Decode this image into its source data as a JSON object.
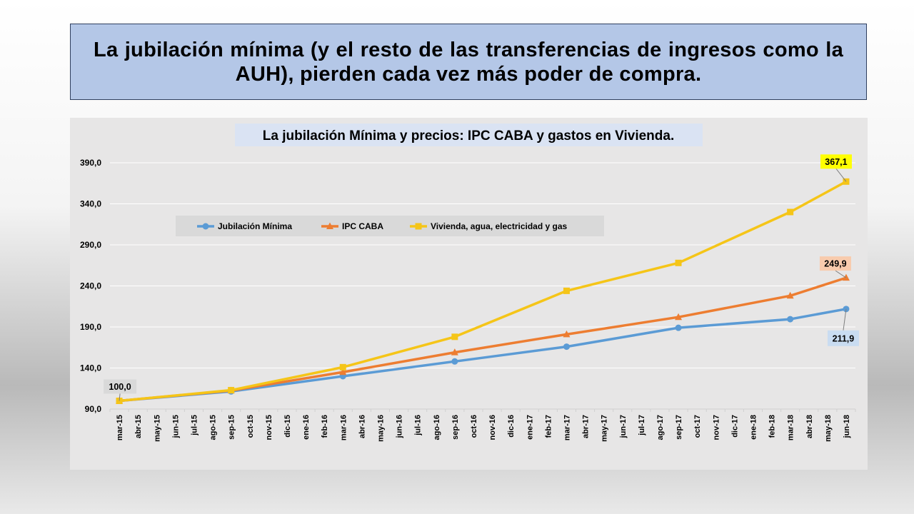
{
  "slide": {
    "headline": "La jubilación mínima (y el resto de las transferencias de ingresos como la AUH), pierden cada vez más poder de compra."
  },
  "chart_data": {
    "type": "line",
    "title": "La jubilación Mínima y precios: IPC CABA y gastos en Vivienda.",
    "xlabel": "",
    "ylabel": "",
    "ylim": [
      90,
      390
    ],
    "yticks": [
      "390,0",
      "340,0",
      "290,0",
      "240,0",
      "190,0",
      "140,0",
      "90,0"
    ],
    "ytick_values": [
      390,
      340,
      290,
      240,
      190,
      140,
      90
    ],
    "categories": [
      "mar-15",
      "abr-15",
      "may-15",
      "jun-15",
      "jul-15",
      "ago-15",
      "sep-15",
      "oct-15",
      "nov-15",
      "dic-15",
      "ene-16",
      "feb-16",
      "mar-16",
      "abr-16",
      "may-16",
      "jun-16",
      "jul-16",
      "ago-16",
      "sep-16",
      "oct-16",
      "nov-16",
      "dic-16",
      "ene-17",
      "feb-17",
      "mar-17",
      "abr-17",
      "may-17",
      "jun-17",
      "jul-17",
      "ago-17",
      "sep-17",
      "oct-17",
      "nov-17",
      "dic-17",
      "ene-18",
      "feb-18",
      "mar-18",
      "abr-18",
      "may-18",
      "jun-18"
    ],
    "legend_position": "top-left",
    "series": [
      {
        "name": "Jubilación Mínima",
        "color": "#5b9bd5",
        "marker": "circle",
        "points": [
          [
            0,
            100.0
          ],
          [
            6,
            111.5
          ],
          [
            12,
            130.0
          ],
          [
            18,
            148.0
          ],
          [
            24,
            166.0
          ],
          [
            30,
            189.0
          ],
          [
            36,
            199.5
          ],
          [
            39,
            211.9
          ]
        ]
      },
      {
        "name": "IPC CABA",
        "color": "#ed7d31",
        "marker": "triangle",
        "points": [
          [
            0,
            100.0
          ],
          [
            6,
            112.5
          ],
          [
            12,
            135.0
          ],
          [
            18,
            159.0
          ],
          [
            24,
            181.0
          ],
          [
            30,
            202.0
          ],
          [
            36,
            228.0
          ],
          [
            39,
            249.9
          ]
        ]
      },
      {
        "name": "Vivienda, agua, electricidad y gas",
        "color": "#f5c518",
        "marker": "square",
        "points": [
          [
            0,
            100.0
          ],
          [
            6,
            113.0
          ],
          [
            12,
            141.0
          ],
          [
            18,
            178.0
          ],
          [
            24,
            234.0
          ],
          [
            30,
            268.0
          ],
          [
            36,
            330.0
          ],
          [
            39,
            367.1
          ]
        ]
      }
    ],
    "annotations": [
      {
        "text": "100,0",
        "series": 0,
        "point": 0,
        "bg": "#d9d9d9"
      },
      {
        "text": "367,1",
        "series": 2,
        "point": 7,
        "bg": "#ffff00"
      },
      {
        "text": "249,9",
        "series": 1,
        "point": 7,
        "bg": "#f8cbad"
      },
      {
        "text": "211,9",
        "series": 0,
        "point": 7,
        "bg": "#c9dcf1"
      }
    ]
  }
}
